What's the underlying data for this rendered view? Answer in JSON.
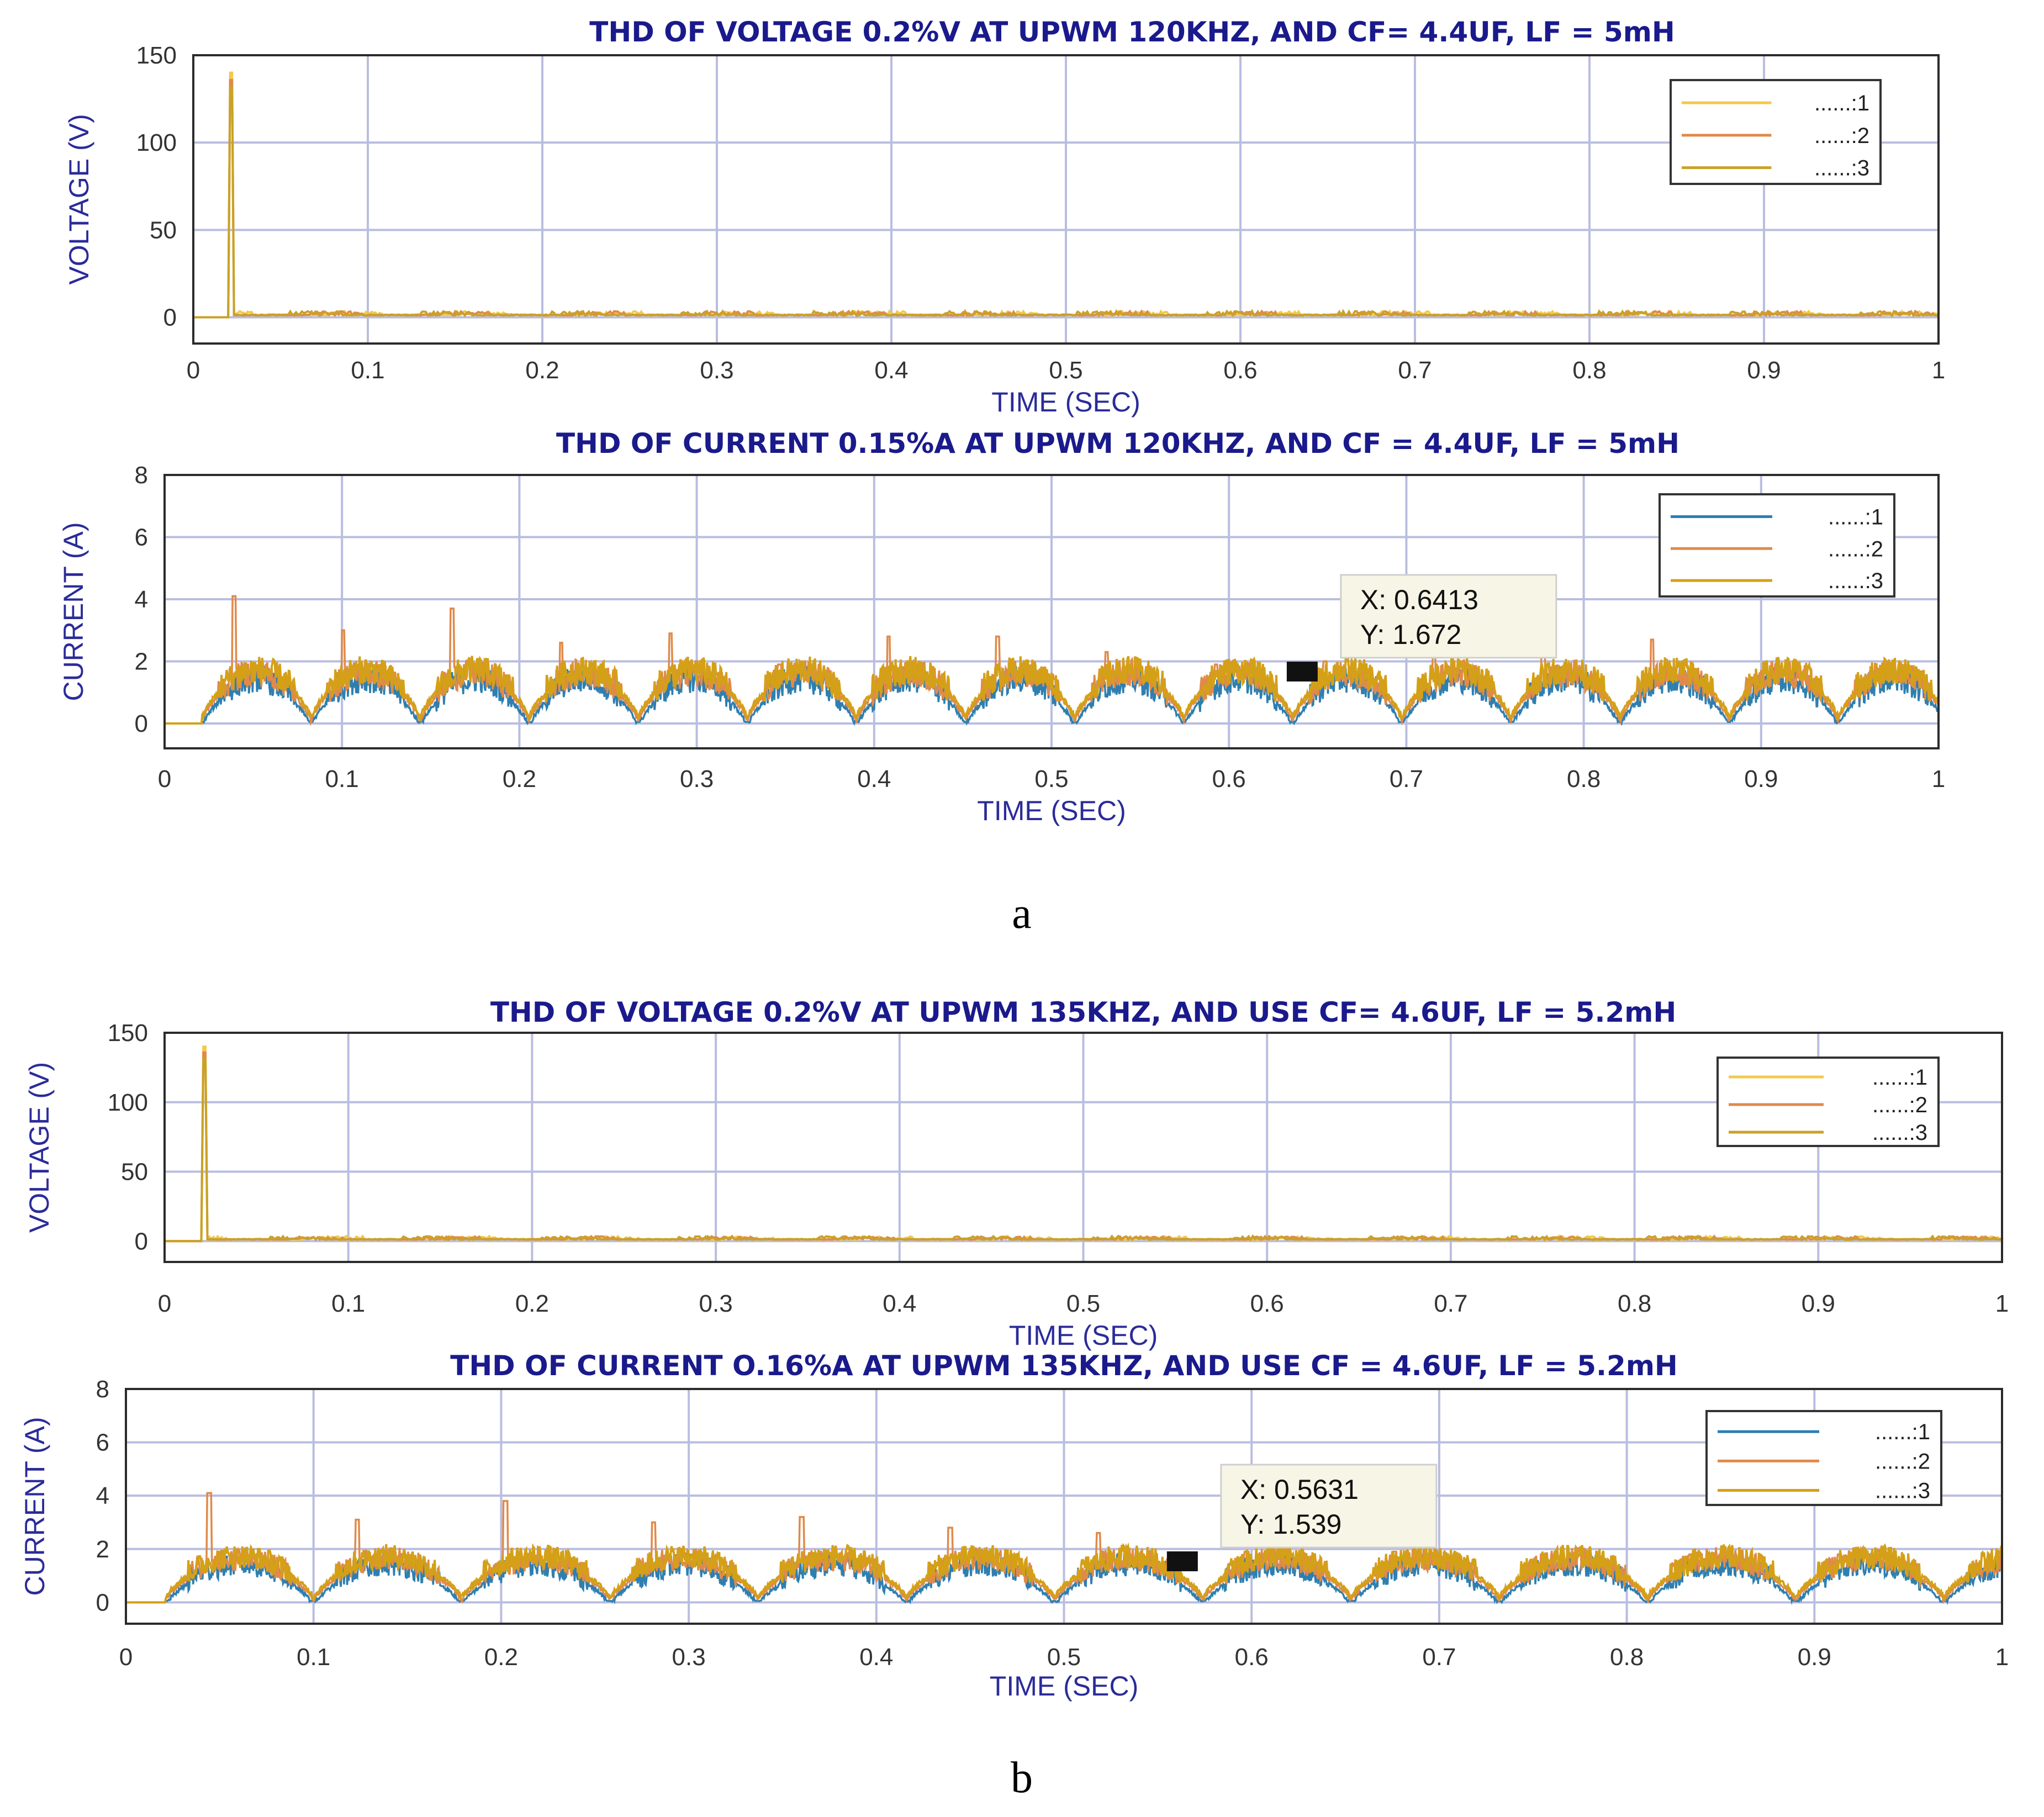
{
  "panel_labels": {
    "a": "a",
    "b": "b"
  },
  "chart_data": [
    {
      "type": "line",
      "title": "THD OF VOLTAGE 0.2%V AT UPWM 120KHZ, AND CF= 4.4UF, LF = 5mH",
      "xlabel": "TIME (SEC)",
      "ylabel": "VOLTAGE (V)",
      "xlim": [
        0,
        1
      ],
      "ylim": [
        -15,
        150
      ],
      "yticks": [
        0,
        50,
        100,
        150
      ],
      "xticks": [
        0,
        0.1,
        0.2,
        0.3,
        0.4,
        0.5,
        0.6,
        0.7,
        0.8,
        0.9,
        1
      ],
      "xtick_labels": [
        "0",
        "0.1",
        "0.2",
        "0.3",
        "0.4",
        "0.5",
        "0.6",
        "0.7",
        "0.8",
        "0.9",
        "1"
      ],
      "grid": true,
      "legend_position": "top-right",
      "kind": "voltage",
      "spike": {
        "x": 0.021,
        "y": 140
      },
      "series": [
        {
          "name": "......:1",
          "color": "#f2c94c"
        },
        {
          "name": "......:2",
          "color": "#e08a4a"
        },
        {
          "name": "......:3",
          "color": "#c9a227"
        }
      ]
    },
    {
      "type": "line",
      "title": "THD OF CURRENT 0.15%A AT UPWM 120KHZ, AND CF = 4.4UF, LF = 5mH",
      "xlabel": "TIME (SEC)",
      "ylabel": "CURRENT (A)",
      "xlim": [
        0,
        1
      ],
      "ylim": [
        -0.8,
        8
      ],
      "yticks": [
        0,
        2,
        4,
        6,
        8
      ],
      "xticks": [
        0,
        0.1,
        0.2,
        0.3,
        0.4,
        0.5,
        0.6,
        0.7,
        0.8,
        0.9,
        1
      ],
      "xtick_labels": [
        "0",
        "0.1",
        "0.2",
        "0.3",
        "0.4",
        "0.5",
        "0.6",
        "0.7",
        "0.8",
        "0.9",
        "1"
      ],
      "grid": true,
      "legend_position": "top-right",
      "kind": "current",
      "period": 0.0615,
      "peaks": [
        4.1,
        3.0,
        3.7,
        2.6,
        2.9,
        1.9,
        2.8,
        2.8,
        2.3,
        1.9,
        2.0,
        2.4,
        2.9,
        2.7
      ],
      "datatip": {
        "x": 0.6413,
        "y": 1.672,
        "x_text": "X: 0.6413",
        "y_text": "Y: 1.672"
      },
      "series": [
        {
          "name": "......:1",
          "color": "#2e7fb0"
        },
        {
          "name": "......:2",
          "color": "#e08a4a"
        },
        {
          "name": "......:3",
          "color": "#d4a017"
        }
      ]
    },
    {
      "type": "line",
      "title": "THD OF VOLTAGE 0.2%V AT UPWM 135KHZ, AND USE CF= 4.6UF, LF = 5.2mH",
      "xlabel": "TIME (SEC)",
      "ylabel": "VOLTAGE (V)",
      "xlim": [
        0,
        1
      ],
      "ylim": [
        -15,
        150
      ],
      "yticks": [
        0,
        50,
        100,
        150
      ],
      "xticks": [
        0,
        0.1,
        0.2,
        0.3,
        0.4,
        0.5,
        0.6,
        0.7,
        0.8,
        0.9,
        1
      ],
      "xtick_labels": [
        "0",
        "0.1",
        "0.2",
        "0.3",
        "0.4",
        "0.5",
        "0.6",
        "0.7",
        "0.8",
        "0.9",
        "1"
      ],
      "grid": true,
      "legend_position": "top-right",
      "kind": "voltage",
      "spike": {
        "x": 0.021,
        "y": 140
      },
      "series": [
        {
          "name": "......:1",
          "color": "#f2c94c"
        },
        {
          "name": "......:2",
          "color": "#e08a4a"
        },
        {
          "name": "......:3",
          "color": "#c9a227"
        }
      ]
    },
    {
      "type": "line",
      "title": "THD OF CURRENT O.16%A AT UPWM 135KHZ, AND USE CF = 4.6UF, LF = 5.2mH",
      "xlabel": "TIME (SEC)",
      "ylabel": "CURRENT (A)",
      "xlim": [
        0,
        1
      ],
      "ylim": [
        -0.8,
        8
      ],
      "yticks": [
        0,
        2,
        4,
        6,
        8
      ],
      "xticks": [
        0,
        0.1,
        0.2,
        0.3,
        0.4,
        0.5,
        0.6,
        0.7,
        0.8,
        0.9,
        1
      ],
      "xtick_labels": [
        "0",
        "0.1",
        "0.2",
        "0.3",
        "0.4",
        "0.5",
        "0.6",
        "0.7",
        "0.8",
        "0.9",
        "1"
      ],
      "grid": true,
      "legend_position": "top-right",
      "kind": "current",
      "period": 0.079,
      "peaks": [
        4.1,
        3.1,
        3.8,
        3.0,
        3.2,
        2.8,
        2.6,
        1.9,
        1.9,
        1.8,
        1.8,
        1.8
      ],
      "datatip": {
        "x": 0.5631,
        "y": 1.539,
        "x_text": "X: 0.5631",
        "y_text": "Y: 1.539"
      },
      "series": [
        {
          "name": "......:1",
          "color": "#2e7fb0"
        },
        {
          "name": "......:2",
          "color": "#e08a4a"
        },
        {
          "name": "......:3",
          "color": "#d4a017"
        }
      ]
    }
  ]
}
